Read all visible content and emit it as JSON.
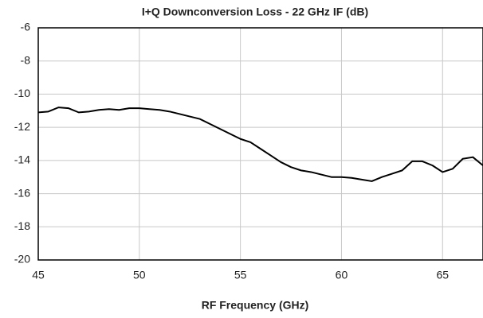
{
  "chart_data": {
    "type": "line",
    "title": "I+Q Downconversion Loss - 22 GHz IF (dB)",
    "x_label": "RF Frequency  (GHz)",
    "x": [
      45,
      45.5,
      46,
      46.5,
      47,
      47.5,
      48,
      48.5,
      49,
      49.5,
      50,
      50.5,
      51,
      51.5,
      52,
      52.5,
      53,
      53.5,
      54,
      54.5,
      55,
      55.5,
      56,
      56.5,
      57,
      57.5,
      58,
      58.5,
      59,
      59.5,
      60,
      60.5,
      61,
      61.5,
      62,
      62.5,
      63,
      63.5,
      64,
      64.5,
      65,
      65.5,
      66,
      66.5,
      67
    ],
    "values": [
      -11.1,
      -11.05,
      -10.8,
      -10.85,
      -11.1,
      -11.05,
      -10.95,
      -10.9,
      -10.95,
      -10.85,
      -10.85,
      -10.9,
      -10.95,
      -11.05,
      -11.2,
      -11.35,
      -11.5,
      -11.8,
      -12.1,
      -12.4,
      -12.7,
      -12.9,
      -13.3,
      -13.7,
      -14.1,
      -14.4,
      -14.6,
      -14.7,
      -14.85,
      -15.0,
      -15.0,
      -15.05,
      -15.15,
      -15.25,
      -15.0,
      -14.8,
      -14.6,
      -14.05,
      -14.05,
      -14.3,
      -14.7,
      -14.5,
      -13.9,
      -13.8,
      -14.3
    ],
    "color": "#000000",
    "xlim": [
      45,
      67
    ],
    "xticks": [
      45,
      50,
      55,
      60,
      65
    ],
    "ylim": [
      -20,
      -6
    ],
    "yticks": [
      -20,
      -18,
      -16,
      -14,
      -12,
      -10,
      -8,
      -6
    ],
    "grid": true
  }
}
